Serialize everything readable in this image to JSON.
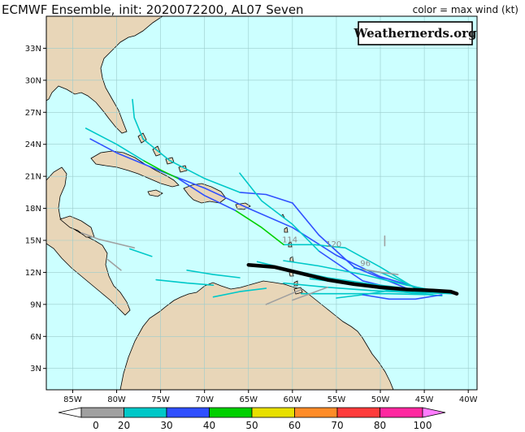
{
  "title": "ECMWF Ensemble, init: 2020072200, AL07 Seven",
  "legend_label": "color = max wind (kt)",
  "watermark": "Weathernerds.org",
  "lon_ticks": [
    {
      "value": -85,
      "label": "85W"
    },
    {
      "value": -80,
      "label": "80W"
    },
    {
      "value": -75,
      "label": "75W"
    },
    {
      "value": -70,
      "label": "70W"
    },
    {
      "value": -65,
      "label": "65W"
    },
    {
      "value": -60,
      "label": "60W"
    },
    {
      "value": -55,
      "label": "55W"
    },
    {
      "value": -50,
      "label": "50W"
    },
    {
      "value": -45,
      "label": "45W"
    },
    {
      "value": -40,
      "label": "40W"
    }
  ],
  "lat_ticks": [
    {
      "value": 3,
      "label": "3N"
    },
    {
      "value": 6,
      "label": "6N"
    },
    {
      "value": 9,
      "label": "9N"
    },
    {
      "value": 12,
      "label": "12N"
    },
    {
      "value": 15,
      "label": "15N"
    },
    {
      "value": 18,
      "label": "18N"
    },
    {
      "value": 21,
      "label": "21N"
    },
    {
      "value": 24,
      "label": "24N"
    },
    {
      "value": 27,
      "label": "27N"
    },
    {
      "value": 30,
      "label": "30N"
    },
    {
      "value": 33,
      "label": "33N"
    }
  ],
  "colorbar": {
    "labels": [
      "0",
      "20",
      "30",
      "40",
      "50",
      "60",
      "70",
      "80",
      "100"
    ],
    "colors": [
      "#ffffff",
      "#a0a0a0",
      "#00c8c8",
      "#3050ff",
      "#00d000",
      "#e8e000",
      "#ff8c28",
      "#ff3c3c",
      "#ff28a0",
      "#ff7cff"
    ]
  },
  "colors": {
    "ocean": "#ccffff",
    "land": "#e8d6b8",
    "mean_track": "#000000"
  },
  "intensity_labels": [
    {
      "text": "114",
      "lon": -60.3,
      "lat": 14.8
    },
    {
      "text": "120",
      "lon": -55.3,
      "lat": 14.4
    },
    {
      "text": "96",
      "lon": -51.7,
      "lat": 12.6
    }
  ],
  "chart_data": {
    "type": "track-map",
    "xlim": [
      -88,
      -39
    ],
    "ylim": [
      1,
      36
    ],
    "mean_track": {
      "name": "ensemble mean",
      "lon": [
        -65,
        -62,
        -59,
        -56,
        -53,
        -50,
        -47,
        -44,
        -42,
        -41.3
      ],
      "lat": [
        12.7,
        12.5,
        11.9,
        11.3,
        10.9,
        10.6,
        10.4,
        10.3,
        10.2,
        10.0
      ]
    },
    "members": [
      {
        "color": "#3050ff",
        "lon": [
          -41.5,
          -45,
          -50,
          -55,
          -60,
          -65,
          -70,
          -75,
          -80,
          -83
        ],
        "lat": [
          10.0,
          10.4,
          11.6,
          13.6,
          16.2,
          18.0,
          19.9,
          21.5,
          23.2,
          24.5
        ]
      },
      {
        "color": "#00c8c8",
        "lon": [
          -41.5,
          -46,
          -50,
          -53
        ],
        "lat": [
          10.0,
          10.6,
          12.0,
          12.4
        ]
      },
      {
        "color": "#3050ff",
        "lon": [
          -41.5,
          -47,
          -53,
          -57,
          -60
        ],
        "lat": [
          10.0,
          10.5,
          12.5,
          15.5,
          18.5
        ]
      },
      {
        "color": "#3050ff",
        "lon": [
          -60,
          -63,
          -66
        ],
        "lat": [
          18.5,
          19.3,
          19.5
        ]
      },
      {
        "color": "#00c8c8",
        "lon": [
          -66,
          -70,
          -74,
          -77
        ],
        "lat": [
          19.5,
          20.8,
          22.5,
          24.5
        ]
      },
      {
        "color": "#00c8c8",
        "lon": [
          -77,
          -78,
          -78.2
        ],
        "lat": [
          24.5,
          26.5,
          28.2
        ]
      },
      {
        "color": "#3050ff",
        "lon": [
          -41.5,
          -47,
          -52,
          -57
        ],
        "lat": [
          10.0,
          10.2,
          11.2,
          14.0
        ]
      },
      {
        "color": "#00c8c8",
        "lon": [
          -57,
          -60,
          -63.5,
          -66
        ],
        "lat": [
          14.0,
          16.5,
          18.7,
          21.3
        ]
      },
      {
        "color": "#00c8c8",
        "lon": [
          -41.5,
          -46,
          -50,
          -54,
          -57.5,
          -61
        ],
        "lat": [
          10.0,
          10.5,
          12.5,
          14.3,
          14.6,
          14.6
        ]
      },
      {
        "color": "#00d000",
        "lon": [
          -61,
          -63.5,
          -66.5
        ],
        "lat": [
          14.6,
          16.2,
          17.8
        ]
      },
      {
        "color": "#3050ff",
        "lon": [
          -66.5,
          -70,
          -73
        ],
        "lat": [
          17.8,
          19.2,
          20.8
        ]
      },
      {
        "color": "#00d000",
        "lon": [
          -73,
          -75,
          -77
        ],
        "lat": [
          20.8,
          21.6,
          22.5
        ]
      },
      {
        "color": "#00c8c8",
        "lon": [
          -77,
          -80,
          -83.5
        ],
        "lat": [
          22.5,
          24.0,
          25.5
        ]
      },
      {
        "color": "#00c8c8",
        "lon": [
          -41.5,
          -46,
          -51,
          -56,
          -61
        ],
        "lat": [
          10.0,
          10.1,
          10.3,
          10.6,
          11.0
        ]
      },
      {
        "color": "#00c8c8",
        "lon": [
          -41.5,
          -46,
          -51,
          -56,
          -60,
          -64
        ],
        "lat": [
          10.0,
          10.4,
          10.9,
          11.5,
          12.2,
          13.0
        ]
      },
      {
        "color": "#00c8c8",
        "lon": [
          -42,
          -47,
          -52,
          -57,
          -61
        ],
        "lat": [
          10.0,
          10.8,
          11.8,
          12.6,
          13.1
        ]
      },
      {
        "color": "#00c8c8",
        "lon": [
          -43,
          -48,
          -53,
          -58
        ],
        "lat": [
          9.8,
          10.2,
          10.9,
          11.4
        ]
      },
      {
        "color": "#00c8c8",
        "lon": [
          -44,
          -49,
          -54,
          -59
        ],
        "lat": [
          9.9,
          10.0,
          10.0,
          10.0
        ]
      },
      {
        "color": "#00c8c8",
        "lon": [
          -63,
          -66,
          -69
        ],
        "lat": [
          10.5,
          10.2,
          9.7
        ]
      },
      {
        "color": "#00c8c8",
        "lon": [
          -69,
          -72,
          -75.5
        ],
        "lat": [
          10.8,
          11.0,
          11.3
        ]
      },
      {
        "color": "#00c8c8",
        "lon": [
          -66,
          -69,
          -72
        ],
        "lat": [
          11.5,
          11.8,
          12.2
        ]
      },
      {
        "color": "#00c8c8",
        "lon": [
          -76,
          -78.5
        ],
        "lat": [
          13.5,
          14.2
        ]
      },
      {
        "color": "#a0a0a0",
        "lon": [
          -84,
          -82,
          -80,
          -78
        ],
        "lat": [
          15.7,
          15.1,
          14.7,
          14.3
        ]
      },
      {
        "color": "#a0a0a0",
        "lon": [
          -81,
          -79.5
        ],
        "lat": [
          13.2,
          12.2
        ]
      },
      {
        "color": "#00c8c8",
        "lon": [
          -55,
          -52,
          -49,
          -46,
          -43
        ],
        "lat": [
          9.6,
          9.9,
          10.3,
          10.2,
          10.1
        ]
      },
      {
        "color": "#3050ff",
        "lon": [
          -52,
          -49,
          -46,
          -43
        ],
        "lat": [
          9.9,
          9.5,
          9.5,
          9.9
        ]
      },
      {
        "color": "#a0a0a0",
        "lon": [
          -60,
          -58,
          -56
        ],
        "lat": [
          9.4,
          10.0,
          10.6
        ]
      },
      {
        "color": "#a0a0a0",
        "lon": [
          -63,
          -61,
          -59
        ],
        "lat": [
          9.0,
          9.7,
          10.4
        ]
      },
      {
        "color": "#a0a0a0",
        "lon": [
          -49.5,
          -49.5
        ],
        "lat": [
          14.5,
          15.4
        ]
      },
      {
        "color": "#a0a0a0",
        "lon": [
          -52,
          -50,
          -48
        ],
        "lat": [
          12.3,
          12.0,
          11.8
        ]
      }
    ]
  }
}
